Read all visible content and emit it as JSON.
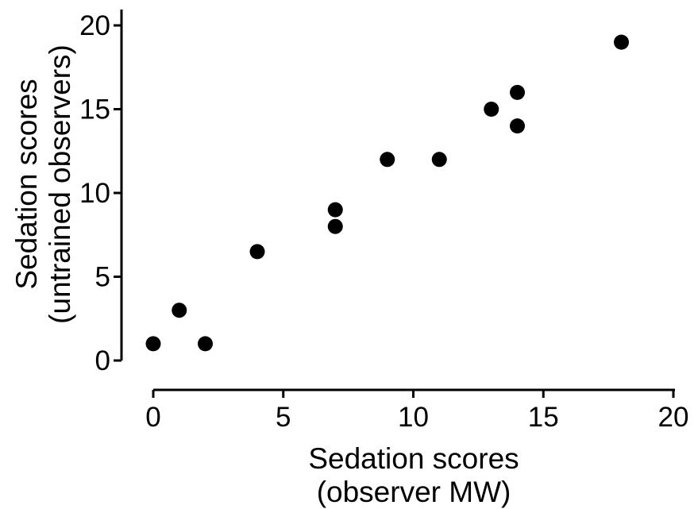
{
  "chart_data": {
    "type": "scatter",
    "title": "",
    "xlabel": [
      "Sedation scores",
      "(observer MW)"
    ],
    "ylabel": [
      "Sedation scores",
      "(untrained observers)"
    ],
    "xlim": [
      0,
      20
    ],
    "ylim": [
      0,
      20
    ],
    "xticks": [
      "0",
      "5",
      "10",
      "15",
      "20"
    ],
    "yticks": [
      "0",
      "5",
      "10",
      "15",
      "20"
    ],
    "grid": false,
    "legend": "none",
    "marker_color": "#000000",
    "points": [
      {
        "x": 0,
        "y": 1
      },
      {
        "x": 1,
        "y": 3
      },
      {
        "x": 2,
        "y": 1
      },
      {
        "x": 4,
        "y": 6.5
      },
      {
        "x": 7,
        "y": 9
      },
      {
        "x": 7,
        "y": 8
      },
      {
        "x": 9,
        "y": 12
      },
      {
        "x": 11,
        "y": 12
      },
      {
        "x": 13,
        "y": 15
      },
      {
        "x": 14,
        "y": 16
      },
      {
        "x": 14,
        "y": 14
      },
      {
        "x": 18,
        "y": 19
      }
    ]
  }
}
